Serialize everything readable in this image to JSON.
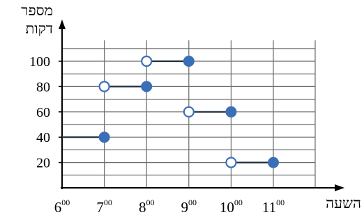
{
  "chart_data": {
    "type": "step",
    "title": "",
    "ylabel_lines": [
      "מספר",
      "דקות"
    ],
    "xlabel": "השעה",
    "x_categories": [
      "6",
      "7",
      "8",
      "9",
      "10",
      "11"
    ],
    "x_tick_superscript": "00",
    "y_ticks": [
      20,
      40,
      60,
      80,
      100
    ],
    "xlim": [
      6,
      11.9
    ],
    "ylim": [
      0,
      115
    ],
    "grid": true,
    "segments": [
      {
        "x_start": 6,
        "x_end": 7,
        "y": 40,
        "start": "none",
        "end": "closed"
      },
      {
        "x_start": 7,
        "x_end": 8,
        "y": 80,
        "start": "open",
        "end": "closed"
      },
      {
        "x_start": 8,
        "x_end": 9,
        "y": 100,
        "start": "open",
        "end": "closed"
      },
      {
        "x_start": 9,
        "x_end": 10,
        "y": 60,
        "start": "open",
        "end": "closed"
      },
      {
        "x_start": 10,
        "x_end": 11,
        "y": 20,
        "start": "open",
        "end": "closed"
      }
    ],
    "colors": {
      "line": "#1f2d3d",
      "marker": "#3a6fb8",
      "open_marker_fill": "#ffffff",
      "grid": "#6b6b6b",
      "axis": "#000000"
    }
  }
}
